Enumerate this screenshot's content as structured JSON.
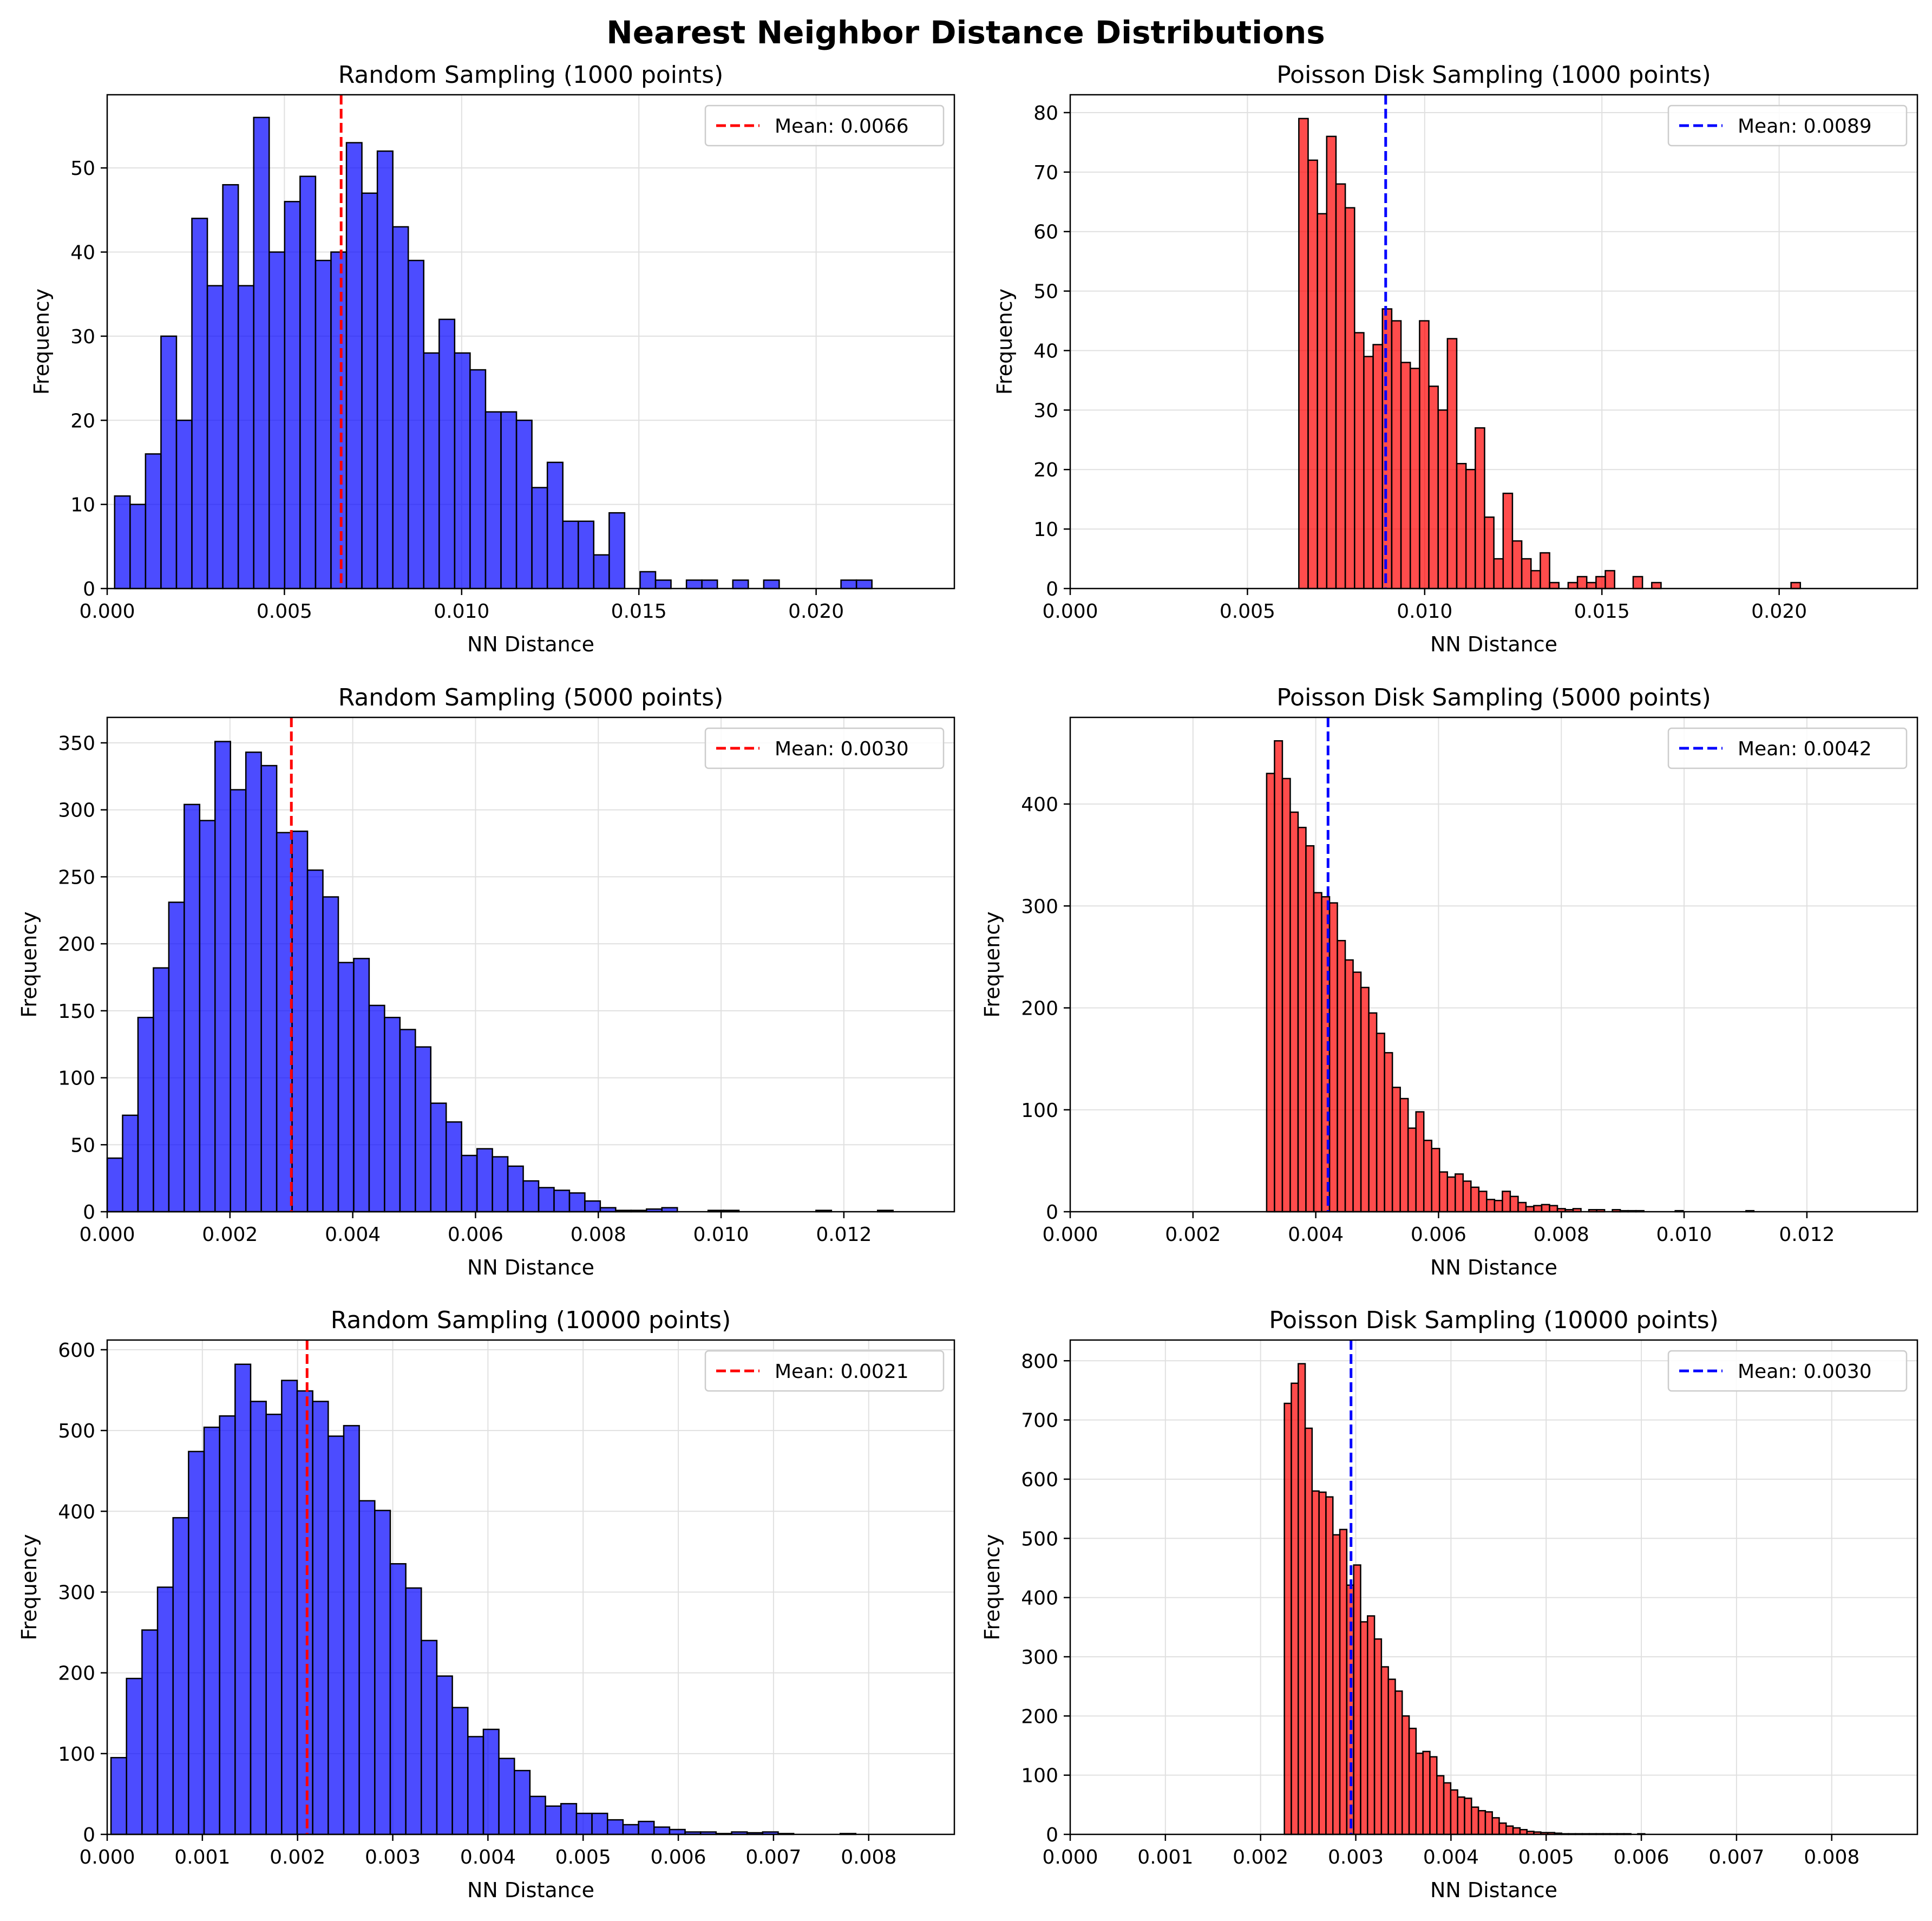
{
  "figure_title": "Nearest Neighbor Distance Distributions",
  "colors": {
    "random": "#0000ff",
    "poisson": "#ff0000",
    "edge": "#000000",
    "grid": "#e0e0e0"
  },
  "chart_data": [
    {
      "type": "bar",
      "title": "Random Sampling (1000 points)",
      "xlabel": "NN Distance",
      "ylabel": "Frequency",
      "xlim": [
        0,
        0.0239
      ],
      "ylim": [
        0,
        58.7
      ],
      "xticks": [
        0,
        0.005,
        0.01,
        0.015,
        0.02
      ],
      "xtick_labels": [
        "0.000",
        "0.005",
        "0.010",
        "0.015",
        "0.020"
      ],
      "yticks": [
        0,
        10,
        20,
        30,
        40,
        50
      ],
      "ytick_labels": [
        "0",
        "10",
        "20",
        "30",
        "40",
        "50"
      ],
      "bin_start": 0.00021,
      "bin_width": 0.000436,
      "values": [
        11,
        10,
        16,
        30,
        20,
        44,
        36,
        48,
        36,
        56,
        40,
        46,
        49,
        39,
        40,
        53,
        47,
        52,
        43,
        39,
        28,
        32,
        28,
        26,
        21,
        21,
        20,
        12,
        15,
        8,
        8,
        4,
        9,
        0,
        2,
        1,
        0,
        1,
        1,
        0,
        1,
        0,
        1,
        0,
        0,
        0,
        0,
        1,
        1
      ],
      "bar_color": "#0000ff",
      "mean": 0.0066,
      "mean_color": "#ff0000",
      "legend": "Mean: 0.0066",
      "legend_position": "upper right",
      "grid": true
    },
    {
      "type": "bar",
      "title": "Poisson Disk Sampling (1000 points)",
      "xlabel": "NN Distance",
      "ylabel": "Frequency",
      "xlim": [
        0,
        0.0239
      ],
      "ylim": [
        0,
        83
      ],
      "xticks": [
        0,
        0.005,
        0.01,
        0.015,
        0.02
      ],
      "xtick_labels": [
        "0.000",
        "0.005",
        "0.010",
        "0.015",
        "0.020"
      ],
      "yticks": [
        0,
        10,
        20,
        30,
        40,
        50,
        60,
        70,
        80
      ],
      "ytick_labels": [
        "0",
        "10",
        "20",
        "30",
        "40",
        "50",
        "60",
        "70",
        "80"
      ],
      "bin_start": 0.00645,
      "bin_width": 0.000262,
      "values": [
        79,
        72,
        63,
        76,
        68,
        64,
        43,
        39,
        41,
        47,
        45,
        38,
        37,
        45,
        34,
        30,
        42,
        21,
        20,
        27,
        12,
        5,
        16,
        8,
        5,
        3,
        6,
        1,
        0,
        1,
        2,
        1,
        2,
        3,
        0,
        0,
        2,
        0,
        1,
        0,
        0,
        0,
        0,
        0,
        0,
        0,
        0,
        0,
        0,
        0,
        0,
        0,
        0,
        1
      ],
      "bar_color": "#ff0000",
      "mean": 0.0089,
      "mean_color": "#0000ff",
      "legend": "Mean: 0.0089",
      "legend_position": "upper right",
      "grid": true
    },
    {
      "type": "bar",
      "title": "Random Sampling (5000 points)",
      "xlabel": "NN Distance",
      "ylabel": "Frequency",
      "xlim": [
        0,
        0.0138
      ],
      "ylim": [
        0,
        369
      ],
      "xticks": [
        0,
        0.002,
        0.004,
        0.006,
        0.008,
        0.01,
        0.012
      ],
      "xtick_labels": [
        "0.000",
        "0.002",
        "0.004",
        "0.006",
        "0.008",
        "0.010",
        "0.012"
      ],
      "yticks": [
        0,
        50,
        100,
        150,
        200,
        250,
        300,
        350
      ],
      "ytick_labels": [
        "0",
        "50",
        "100",
        "150",
        "200",
        "250",
        "300",
        "350"
      ],
      "bin_start": 0.0,
      "bin_width": 0.000251,
      "values": [
        40,
        72,
        145,
        182,
        231,
        304,
        292,
        351,
        315,
        343,
        333,
        283,
        284,
        255,
        235,
        186,
        189,
        154,
        145,
        136,
        123,
        81,
        67,
        42,
        47,
        41,
        34,
        23,
        18,
        16,
        14,
        8,
        3,
        1,
        1,
        2,
        3,
        0,
        0,
        1,
        1,
        0,
        0,
        0,
        0,
        0,
        1,
        0,
        0,
        0,
        1
      ],
      "bar_color": "#0000ff",
      "mean": 0.003,
      "mean_color": "#ff0000",
      "legend": "Mean: 0.0030",
      "legend_position": "upper right",
      "grid": true
    },
    {
      "type": "bar",
      "title": "Poisson Disk Sampling (5000 points)",
      "xlabel": "NN Distance",
      "ylabel": "Frequency",
      "xlim": [
        0,
        0.0138
      ],
      "ylim": [
        0,
        485
      ],
      "xticks": [
        0,
        0.002,
        0.004,
        0.006,
        0.008,
        0.01,
        0.012
      ],
      "xtick_labels": [
        "0.000",
        "0.002",
        "0.004",
        "0.006",
        "0.008",
        "0.010",
        "0.012"
      ],
      "yticks": [
        0,
        100,
        200,
        300,
        400
      ],
      "ytick_labels": [
        "0",
        "100",
        "200",
        "300",
        "400"
      ],
      "bin_start": 0.0032,
      "bin_width": 0.000128,
      "values": [
        430,
        462,
        425,
        392,
        377,
        359,
        313,
        309,
        303,
        266,
        247,
        235,
        220,
        195,
        175,
        156,
        122,
        111,
        82,
        98,
        70,
        62,
        39,
        34,
        37,
        30,
        24,
        20,
        12,
        11,
        20,
        15,
        9,
        5,
        6,
        7,
        6,
        3,
        2,
        3,
        0,
        2,
        2,
        0,
        2,
        1,
        1,
        1,
        0,
        0,
        0,
        0,
        1,
        0,
        0,
        0,
        0,
        0,
        0,
        0,
        0,
        1
      ],
      "bar_color": "#ff0000",
      "mean": 0.0042,
      "mean_color": "#0000ff",
      "legend": "Mean: 0.0042",
      "legend_position": "upper right",
      "grid": true
    },
    {
      "type": "bar",
      "title": "Random Sampling (10000 points)",
      "xlabel": "NN Distance",
      "ylabel": "Frequency",
      "xlim": [
        0,
        0.0089
      ],
      "ylim": [
        0,
        612
      ],
      "xticks": [
        0,
        0.001,
        0.002,
        0.003,
        0.004,
        0.005,
        0.006,
        0.007,
        0.008
      ],
      "xtick_labels": [
        "0.000",
        "0.001",
        "0.002",
        "0.003",
        "0.004",
        "0.005",
        "0.006",
        "0.007",
        "0.008"
      ],
      "yticks": [
        0,
        100,
        200,
        300,
        400,
        500,
        600
      ],
      "ytick_labels": [
        "0",
        "100",
        "200",
        "300",
        "400",
        "500",
        "600"
      ],
      "bin_start": 4e-05,
      "bin_width": 0.000163,
      "values": [
        95,
        193,
        253,
        306,
        392,
        474,
        504,
        518,
        582,
        536,
        520,
        562,
        549,
        536,
        493,
        506,
        413,
        401,
        335,
        305,
        240,
        196,
        157,
        121,
        130,
        94,
        79,
        47,
        35,
        38,
        26,
        26,
        18,
        12,
        16,
        9,
        6,
        3,
        3,
        1,
        3,
        2,
        3,
        1,
        0,
        0,
        0,
        1
      ],
      "bar_color": "#0000ff",
      "mean": 0.0021,
      "mean_color": "#ff0000",
      "legend": "Mean: 0.0021",
      "legend_position": "upper right",
      "grid": true
    },
    {
      "type": "bar",
      "title": "Poisson Disk Sampling (10000 points)",
      "xlabel": "NN Distance",
      "ylabel": "Frequency",
      "xlim": [
        0,
        0.0089
      ],
      "ylim": [
        0,
        835
      ],
      "xticks": [
        0,
        0.001,
        0.002,
        0.003,
        0.004,
        0.005,
        0.006,
        0.007,
        0.008
      ],
      "xtick_labels": [
        "0.000",
        "0.001",
        "0.002",
        "0.003",
        "0.004",
        "0.005",
        "0.006",
        "0.007",
        "0.008"
      ],
      "yticks": [
        0,
        100,
        200,
        300,
        400,
        500,
        600,
        700,
        800
      ],
      "ytick_labels": [
        "0",
        "100",
        "200",
        "300",
        "400",
        "500",
        "600",
        "700",
        "800"
      ],
      "bin_start": 0.00225,
      "bin_width": 7.28e-05,
      "values": [
        728,
        762,
        795,
        686,
        580,
        578,
        570,
        506,
        515,
        421,
        455,
        359,
        369,
        330,
        283,
        262,
        242,
        200,
        179,
        137,
        140,
        131,
        99,
        87,
        75,
        63,
        61,
        46,
        40,
        38,
        28,
        19,
        14,
        11,
        8,
        5,
        4,
        3,
        3,
        2,
        1,
        1,
        1,
        1,
        1,
        1,
        1,
        1,
        1,
        1,
        0,
        1
      ],
      "bar_color": "#ff0000",
      "mean": 0.00295,
      "mean_color": "#0000ff",
      "legend": "Mean: 0.0030",
      "legend_position": "upper right",
      "grid": true
    }
  ]
}
